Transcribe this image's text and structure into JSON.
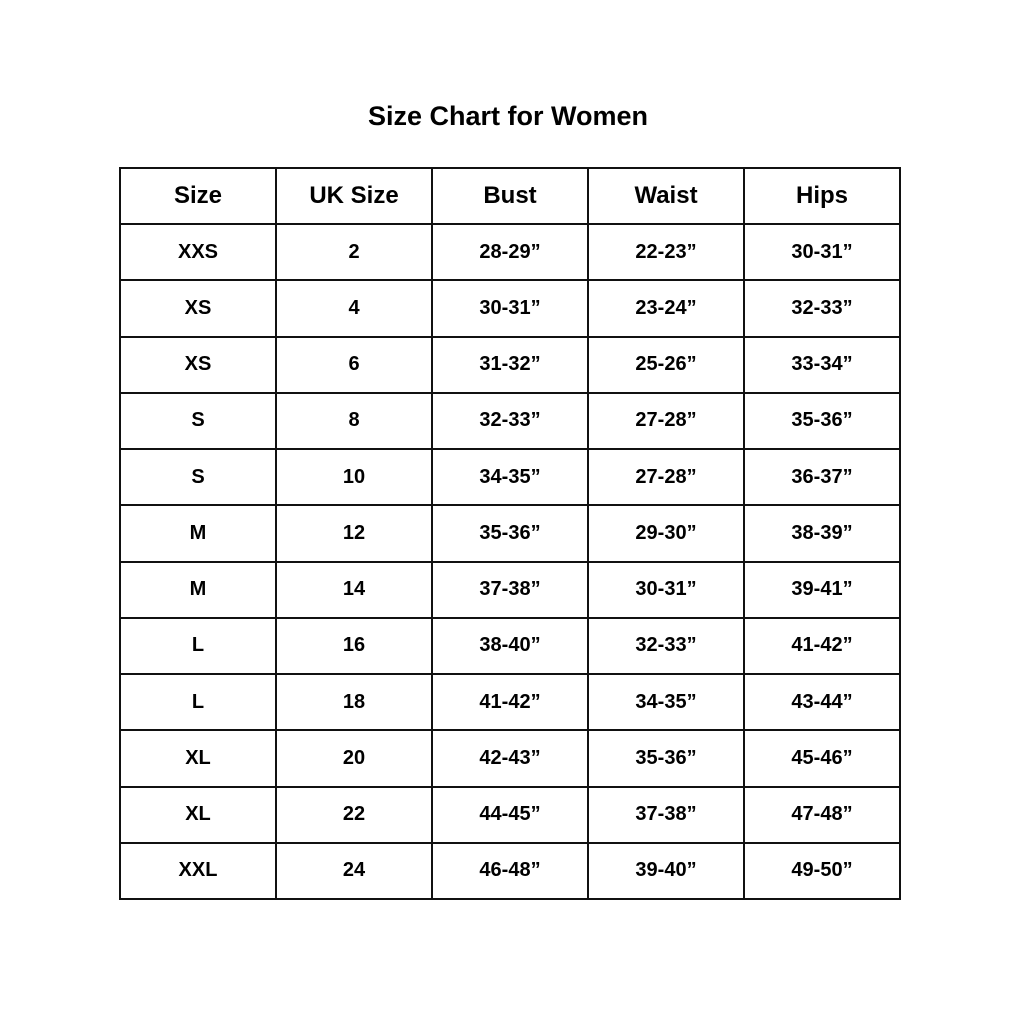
{
  "title": "Size Chart for Women",
  "table": {
    "headers": [
      "Size",
      "UK Size",
      "Bust",
      "Waist",
      "Hips"
    ],
    "rows": [
      [
        "XXS",
        "2",
        "28-29”",
        "22-23”",
        "30-31”"
      ],
      [
        "XS",
        "4",
        "30-31”",
        "23-24”",
        "32-33”"
      ],
      [
        "XS",
        "6",
        "31-32”",
        "25-26”",
        "33-34”"
      ],
      [
        "S",
        "8",
        "32-33”",
        "27-28”",
        "35-36”"
      ],
      [
        "S",
        "10",
        "34-35”",
        "27-28”",
        "36-37”"
      ],
      [
        "M",
        "12",
        "35-36”",
        "29-30”",
        "38-39”"
      ],
      [
        "M",
        "14",
        "37-38”",
        "30-31”",
        "39-41”"
      ],
      [
        "L",
        "16",
        "38-40”",
        "32-33”",
        "41-42”"
      ],
      [
        "L",
        "18",
        "41-42”",
        "34-35”",
        "43-44”"
      ],
      [
        "XL",
        "20",
        "42-43”",
        "35-36”",
        "45-46”"
      ],
      [
        "XL",
        "22",
        "44-45”",
        "37-38”",
        "47-48”"
      ],
      [
        "XXL",
        "24",
        "46-48”",
        "39-40”",
        "49-50”"
      ]
    ]
  }
}
